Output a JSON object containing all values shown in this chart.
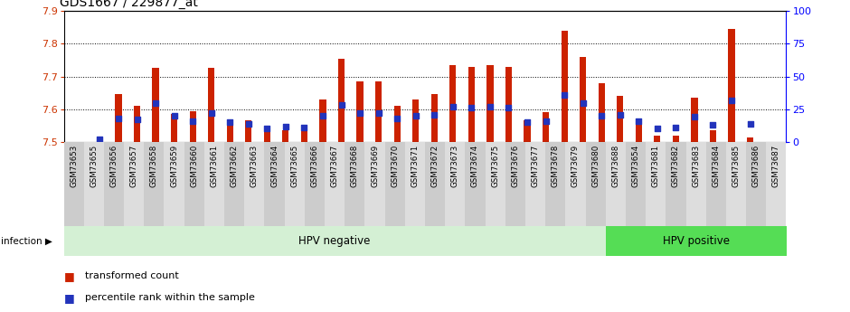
{
  "title": "GDS1667 / 229877_at",
  "samples": [
    "GSM73653",
    "GSM73655",
    "GSM73656",
    "GSM73657",
    "GSM73658",
    "GSM73659",
    "GSM73660",
    "GSM73661",
    "GSM73662",
    "GSM73663",
    "GSM73664",
    "GSM73665",
    "GSM73666",
    "GSM73667",
    "GSM73668",
    "GSM73669",
    "GSM73670",
    "GSM73671",
    "GSM73672",
    "GSM73673",
    "GSM73674",
    "GSM73675",
    "GSM73676",
    "GSM73677",
    "GSM73678",
    "GSM73679",
    "GSM73680",
    "GSM73688",
    "GSM73654",
    "GSM73681",
    "GSM73682",
    "GSM73683",
    "GSM73684",
    "GSM73685",
    "GSM73686",
    "GSM73687"
  ],
  "transformed_count": [
    7.505,
    7.645,
    7.61,
    7.725,
    7.585,
    7.595,
    7.725,
    7.565,
    7.565,
    7.535,
    7.535,
    7.545,
    7.63,
    7.755,
    7.685,
    7.685,
    7.61,
    7.63,
    7.645,
    7.735,
    7.73,
    7.735,
    7.73,
    7.565,
    7.59,
    7.84,
    7.76,
    7.68,
    7.64,
    7.56,
    7.52,
    7.52,
    7.635,
    7.535,
    7.845,
    7.515
  ],
  "percentile_rank": [
    2,
    18,
    17,
    30,
    20,
    16,
    22,
    15,
    14,
    10,
    12,
    11,
    20,
    28,
    22,
    22,
    18,
    20,
    21,
    27,
    26,
    27,
    26,
    15,
    16,
    36,
    30,
    20,
    21,
    16,
    10,
    11,
    19,
    13,
    32,
    14
  ],
  "ylim_left": [
    7.5,
    7.9
  ],
  "ylim_right": [
    0,
    100
  ],
  "yticks_left": [
    7.5,
    7.6,
    7.7,
    7.8,
    7.9
  ],
  "yticks_right": [
    0,
    25,
    50,
    75,
    100
  ],
  "bar_color": "#cc2200",
  "dot_color": "#2233bb",
  "hpv_neg_count": 27,
  "hpv_neg_label": "HPV negative",
  "hpv_pos_label": "HPV positive",
  "hpv_neg_color": "#d4f0d4",
  "hpv_pos_color": "#55dd55",
  "infection_label": "infection",
  "legend_tc": "transformed count",
  "legend_pr": "percentile rank within the sample",
  "stripe_odd": "#cccccc",
  "stripe_even": "#dddddd"
}
